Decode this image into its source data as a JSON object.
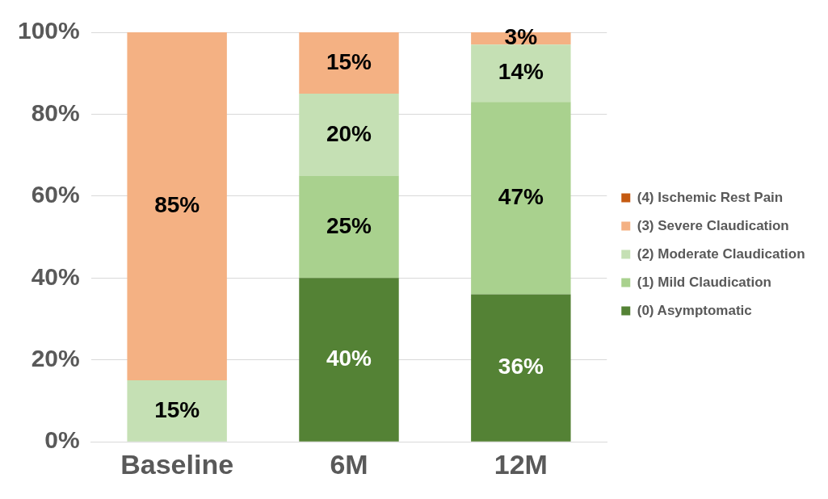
{
  "chart_data": {
    "type": "bar",
    "stacked": true,
    "categories": [
      "Baseline",
      "6M",
      "12M"
    ],
    "series": [
      {
        "name": "(0) Asymptomatic",
        "color": "#548235",
        "values": [
          0,
          40,
          36
        ],
        "value_labels": [
          null,
          "40%",
          "36%"
        ]
      },
      {
        "name": "(1) Mild Claudication",
        "color": "#a9d18e",
        "values": [
          0,
          25,
          47
        ],
        "value_labels": [
          null,
          "25%",
          "47%"
        ]
      },
      {
        "name": "(2) Moderate Claudication",
        "color": "#c5e0b4",
        "values": [
          15,
          20,
          14
        ],
        "value_labels": [
          "15%",
          "20%",
          "14%"
        ]
      },
      {
        "name": "(3) Severe Claudication",
        "color": "#f4b183",
        "values": [
          85,
          15,
          3
        ],
        "value_labels": [
          "85%",
          "15%",
          "3%"
        ]
      },
      {
        "name": "(4) Ischemic Rest Pain",
        "color": "#c55a11",
        "values": [
          0,
          0,
          0
        ],
        "value_labels": [
          null,
          null,
          null
        ]
      }
    ],
    "ylim": [
      0,
      100
    ],
    "yticks": [
      {
        "value": 0,
        "label": "0%"
      },
      {
        "value": 20,
        "label": "20%"
      },
      {
        "value": 40,
        "label": "40%"
      },
      {
        "value": 60,
        "label": "60%"
      },
      {
        "value": 80,
        "label": "80%"
      },
      {
        "value": 100,
        "label": "100%"
      }
    ],
    "grid": "y",
    "legend": "right"
  }
}
